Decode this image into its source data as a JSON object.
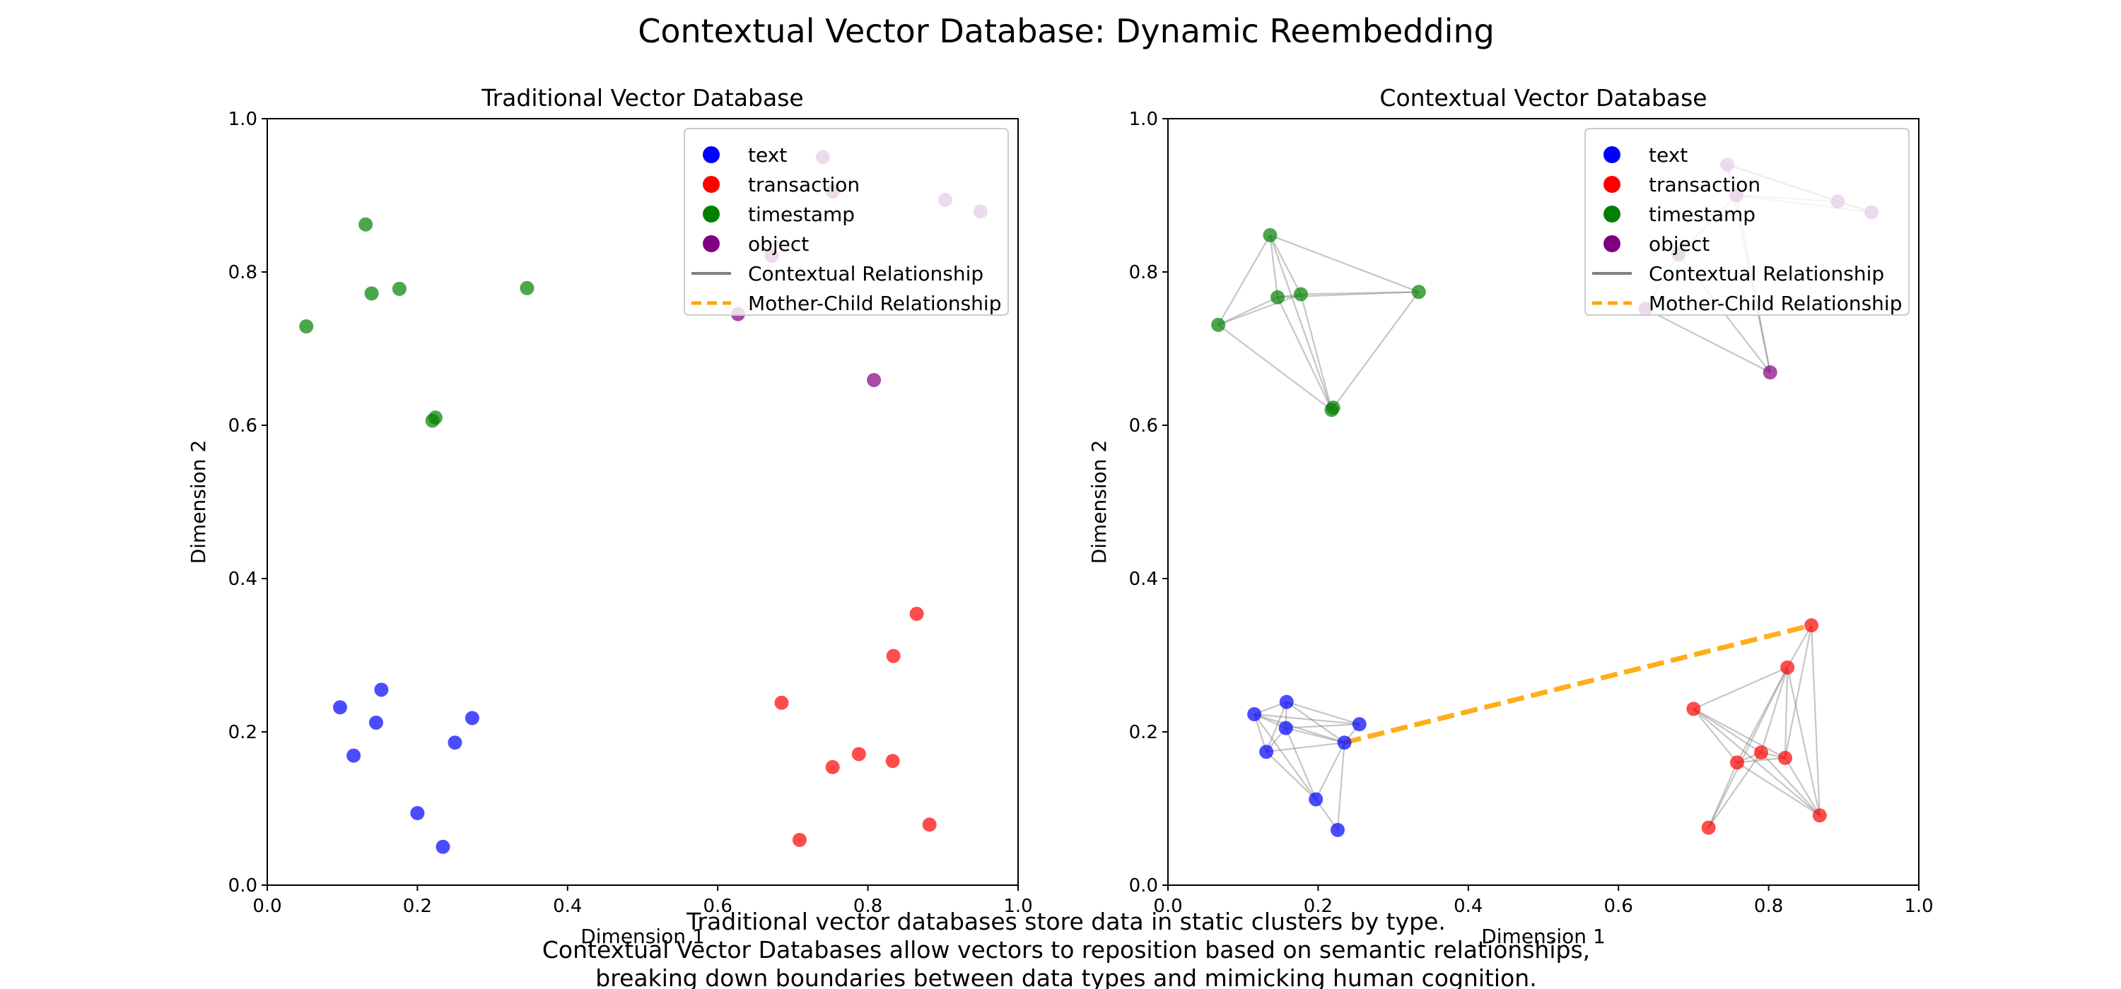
{
  "figure": {
    "title": "Contextual Vector Database: Dynamic Reembedding",
    "caption_lines": [
      "Traditional vector databases store data in static clusters by type.",
      "Contextual Vector Databases allow vectors to reposition based on semantic relationships,",
      "breaking down boundaries between data types and mimicking human cognition."
    ]
  },
  "colors": {
    "text": "#0000ff",
    "transaction": "#ff0000",
    "timestamp": "#008000",
    "object": "#800080",
    "contextual": "#808080",
    "mother_child": "#ffa500"
  },
  "legend": [
    {
      "label": "text",
      "kind": "marker",
      "color_key": "text"
    },
    {
      "label": "transaction",
      "kind": "marker",
      "color_key": "transaction"
    },
    {
      "label": "timestamp",
      "kind": "marker",
      "color_key": "timestamp"
    },
    {
      "label": "object",
      "kind": "marker",
      "color_key": "object"
    },
    {
      "label": "Contextual Relationship",
      "kind": "line",
      "color_key": "contextual"
    },
    {
      "label": "Mother-Child Relationship",
      "kind": "dashed",
      "color_key": "mother_child"
    }
  ],
  "chart_data": [
    {
      "type": "scatter",
      "title": "Traditional Vector Database",
      "xlabel": "Dimension 1",
      "ylabel": "Dimension 2",
      "xlim": [
        0,
        1
      ],
      "ylim": [
        0,
        1
      ],
      "xticks": [
        "0.0",
        "0.2",
        "0.4",
        "0.6",
        "0.8",
        "1.0"
      ],
      "yticks": [
        "0.0",
        "0.2",
        "0.4",
        "0.6",
        "0.8",
        "1.0"
      ],
      "legend_position": "upper right",
      "series": [
        {
          "name": "text",
          "color_key": "text",
          "points": [
            [
              0.097,
              0.232
            ],
            [
              0.115,
              0.169
            ],
            [
              0.145,
              0.212
            ],
            [
              0.152,
              0.255
            ],
            [
              0.2,
              0.094
            ],
            [
              0.234,
              0.05
            ],
            [
              0.25,
              0.186
            ],
            [
              0.273,
              0.218
            ]
          ]
        },
        {
          "name": "transaction",
          "color_key": "transaction",
          "points": [
            [
              0.685,
              0.238
            ],
            [
              0.709,
              0.059
            ],
            [
              0.753,
              0.154
            ],
            [
              0.788,
              0.171
            ],
            [
              0.833,
              0.162
            ],
            [
              0.834,
              0.299
            ],
            [
              0.865,
              0.354
            ],
            [
              0.882,
              0.079
            ]
          ]
        },
        {
          "name": "timestamp",
          "color_key": "timestamp",
          "points": [
            [
              0.052,
              0.729
            ],
            [
              0.131,
              0.862
            ],
            [
              0.139,
              0.772
            ],
            [
              0.176,
              0.778
            ],
            [
              0.22,
              0.606
            ],
            [
              0.224,
              0.61
            ],
            [
              0.346,
              0.779
            ]
          ]
        },
        {
          "name": "object",
          "color_key": "object",
          "points": [
            [
              0.627,
              0.745
            ],
            [
              0.672,
              0.821
            ],
            [
              0.74,
              0.95
            ],
            [
              0.753,
              0.905
            ],
            [
              0.808,
              0.659
            ],
            [
              0.903,
              0.894
            ],
            [
              0.95,
              0.879
            ]
          ]
        }
      ],
      "contextual_edges": [],
      "mother_child_edges": []
    },
    {
      "type": "scatter",
      "title": "Contextual Vector Database",
      "xlabel": "Dimension 1",
      "ylabel": "Dimension 2",
      "xlim": [
        0,
        1
      ],
      "ylim": [
        0,
        1
      ],
      "xticks": [
        "0.0",
        "0.2",
        "0.4",
        "0.6",
        "0.8",
        "1.0"
      ],
      "yticks": [
        "0.0",
        "0.2",
        "0.4",
        "0.6",
        "0.8",
        "1.0"
      ],
      "legend_position": "upper right",
      "series": [
        {
          "name": "text",
          "color_key": "text",
          "points": [
            [
              0.115,
              0.223
            ],
            [
              0.131,
              0.174
            ],
            [
              0.157,
              0.205
            ],
            [
              0.158,
              0.239
            ],
            [
              0.197,
              0.112
            ],
            [
              0.226,
              0.072
            ],
            [
              0.235,
              0.186
            ],
            [
              0.255,
              0.21
            ]
          ]
        },
        {
          "name": "transaction",
          "color_key": "transaction",
          "points": [
            [
              0.7,
              0.23
            ],
            [
              0.72,
              0.075
            ],
            [
              0.758,
              0.16
            ],
            [
              0.79,
              0.173
            ],
            [
              0.822,
              0.166
            ],
            [
              0.825,
              0.284
            ],
            [
              0.857,
              0.339
            ],
            [
              0.868,
              0.091
            ]
          ]
        },
        {
          "name": "timestamp",
          "color_key": "timestamp",
          "points": [
            [
              0.067,
              0.731
            ],
            [
              0.136,
              0.848
            ],
            [
              0.146,
              0.767
            ],
            [
              0.177,
              0.771
            ],
            [
              0.218,
              0.62
            ],
            [
              0.22,
              0.623
            ],
            [
              0.334,
              0.774
            ]
          ]
        },
        {
          "name": "object",
          "color_key": "object",
          "points": [
            [
              0.636,
              0.752
            ],
            [
              0.68,
              0.823
            ],
            [
              0.745,
              0.94
            ],
            [
              0.757,
              0.9
            ],
            [
              0.802,
              0.669
            ],
            [
              0.892,
              0.892
            ],
            [
              0.937,
              0.878
            ]
          ]
        }
      ],
      "contextual_edges": [
        {
          "group": "text",
          "pairs": [
            [
              0,
              1
            ],
            [
              0,
              2
            ],
            [
              0,
              3
            ],
            [
              0,
              4
            ],
            [
              0,
              6
            ],
            [
              0,
              7
            ],
            [
              1,
              2
            ],
            [
              1,
              3
            ],
            [
              1,
              4
            ],
            [
              1,
              6
            ],
            [
              2,
              3
            ],
            [
              2,
              4
            ],
            [
              2,
              6
            ],
            [
              2,
              7
            ],
            [
              3,
              6
            ],
            [
              3,
              7
            ],
            [
              4,
              5
            ],
            [
              4,
              6
            ],
            [
              5,
              6
            ],
            [
              6,
              7
            ]
          ]
        },
        {
          "group": "transaction",
          "pairs": [
            [
              0,
              2
            ],
            [
              0,
              3
            ],
            [
              0,
              4
            ],
            [
              0,
              5
            ],
            [
              0,
              7
            ],
            [
              1,
              2
            ],
            [
              1,
              3
            ],
            [
              2,
              3
            ],
            [
              2,
              4
            ],
            [
              2,
              5
            ],
            [
              2,
              7
            ],
            [
              3,
              4
            ],
            [
              3,
              5
            ],
            [
              3,
              7
            ],
            [
              4,
              5
            ],
            [
              4,
              6
            ],
            [
              4,
              7
            ],
            [
              5,
              6
            ],
            [
              5,
              7
            ],
            [
              6,
              7
            ],
            [
              1,
              5
            ]
          ]
        },
        {
          "group": "timestamp",
          "pairs": [
            [
              0,
              1
            ],
            [
              0,
              2
            ],
            [
              0,
              3
            ],
            [
              0,
              4
            ],
            [
              1,
              2
            ],
            [
              1,
              3
            ],
            [
              1,
              4
            ],
            [
              1,
              6
            ],
            [
              2,
              3
            ],
            [
              2,
              4
            ],
            [
              2,
              6
            ],
            [
              3,
              4
            ],
            [
              3,
              6
            ],
            [
              4,
              5
            ],
            [
              4,
              6
            ]
          ]
        },
        {
          "group": "object",
          "pairs": [
            [
              0,
              1
            ],
            [
              0,
              4
            ],
            [
              1,
              4
            ],
            [
              2,
              3
            ],
            [
              2,
              5
            ],
            [
              2,
              6
            ],
            [
              3,
              5
            ],
            [
              3,
              6
            ],
            [
              5,
              6
            ],
            [
              3,
              4
            ],
            [
              2,
              4
            ],
            [
              1,
              3
            ]
          ]
        }
      ],
      "mother_child_edges": [
        {
          "from_series": "text",
          "from_index": 6,
          "to_series": "transaction",
          "to_index": 6
        }
      ]
    }
  ]
}
